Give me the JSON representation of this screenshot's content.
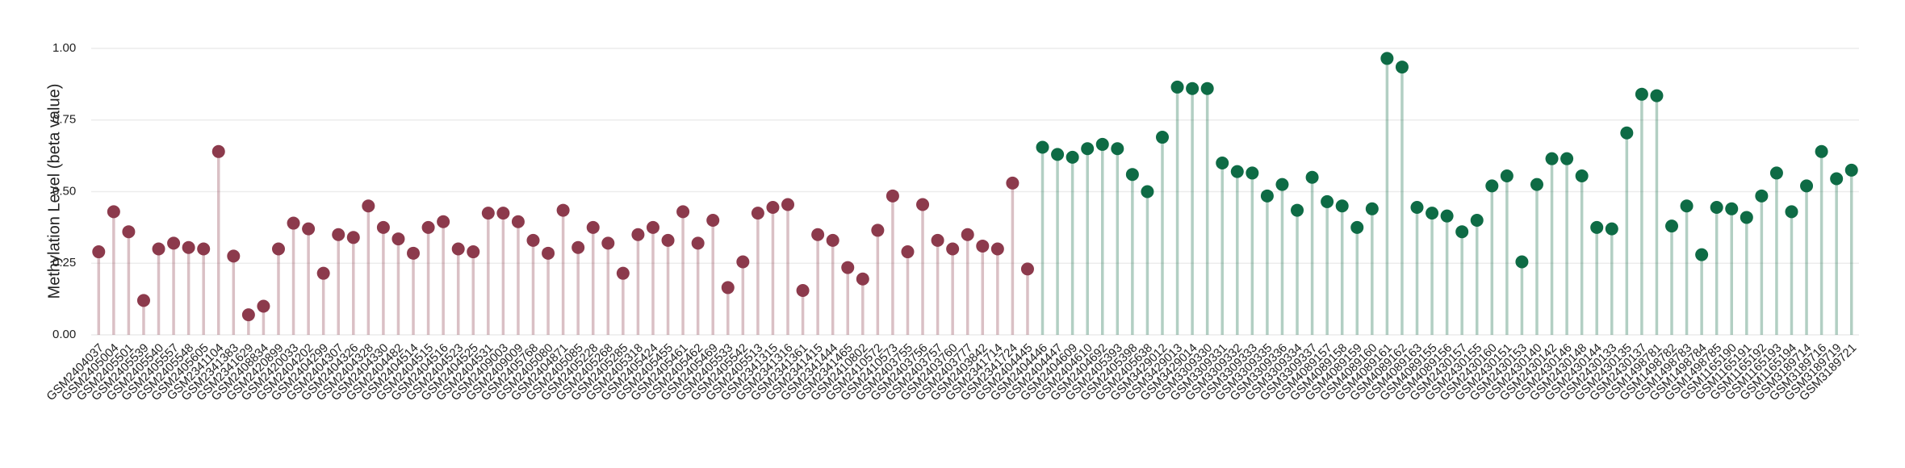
{
  "chart_data": {
    "type": "lollipop",
    "y_label": "Methylation Level (beta value)",
    "categories": [
      "GSM2404037",
      "GSM2405004",
      "GSM2405501",
      "GSM2405539",
      "GSM2405540",
      "GSM2405557",
      "GSM2405548",
      "GSM2405605",
      "GSM2341104",
      "GSM2341383",
      "GSM2341629",
      "GSM2408834",
      "GSM2420899",
      "GSM2420033",
      "GSM2404202",
      "GSM2404299",
      "GSM2404307",
      "GSM2404326",
      "GSM2404328",
      "GSM2404330",
      "GSM2404482",
      "GSM2404514",
      "GSM2404515",
      "GSM2404516",
      "GSM2404523",
      "GSM2404525",
      "GSM2404531",
      "GSM2409003",
      "GSM2409009",
      "GSM2405768",
      "GSM2405080",
      "GSM2404871",
      "GSM2405085",
      "GSM2405228",
      "GSM2405268",
      "GSM2405285",
      "GSM2405318",
      "GSM2405424",
      "GSM2405455",
      "GSM2405461",
      "GSM2405462",
      "GSM2405469",
      "GSM2405533",
      "GSM2405542",
      "GSM2405513",
      "GSM2341315",
      "GSM2341316",
      "GSM2341361",
      "GSM2341415",
      "GSM2341444",
      "GSM2341465",
      "GSM2410802",
      "GSM2410572",
      "GSM2410573",
      "GSM2403755",
      "GSM2403756",
      "GSM2403757",
      "GSM2403760",
      "GSM2403777",
      "GSM2403842",
      "GSM2341714",
      "GSM2341724",
      "GSM2404445",
      "GSM2404446",
      "GSM2404447",
      "GSM2404609",
      "GSM2404610",
      "GSM2404692",
      "GSM2405393",
      "GSM2405398",
      "GSM2405638",
      "GSM3429012",
      "GSM3429013",
      "GSM3429014",
      "GSM3309330",
      "GSM3309331",
      "GSM3309332",
      "GSM3309333",
      "GSM3309335",
      "GSM3309336",
      "GSM3309334",
      "GSM3309337",
      "GSM4089157",
      "GSM4089158",
      "GSM4089159",
      "GSM4089160",
      "GSM4089161",
      "GSM4089162",
      "GSM4089163",
      "GSM4089155",
      "GSM4089156",
      "GSM2430157",
      "GSM2430155",
      "GSM2430160",
      "GSM2430151",
      "GSM2430153",
      "GSM2430140",
      "GSM2430142",
      "GSM2430146",
      "GSM2430148",
      "GSM2430144",
      "GSM2430133",
      "GSM2430135",
      "GSM2430137",
      "GSM1498781",
      "GSM1498782",
      "GSM1498783",
      "GSM1498784",
      "GSM1498785",
      "GSM1165190",
      "GSM1165191",
      "GSM1165192",
      "GSM1165193",
      "GSM1165194",
      "GSM3189714",
      "GSM3189716",
      "GSM3189719",
      "GSM3189721"
    ],
    "values": [
      0.29,
      0.43,
      0.36,
      0.12,
      0.3,
      0.32,
      0.305,
      0.3,
      0.64,
      0.275,
      0.07,
      0.1,
      0.3,
      0.39,
      0.37,
      0.215,
      0.35,
      0.34,
      0.45,
      0.375,
      0.335,
      0.285,
      0.375,
      0.395,
      0.3,
      0.29,
      0.425,
      0.425,
      0.395,
      0.33,
      0.285,
      0.435,
      0.305,
      0.375,
      0.32,
      0.215,
      0.35,
      0.375,
      0.33,
      0.43,
      0.32,
      0.4,
      0.165,
      0.255,
      0.425,
      0.445,
      0.455,
      0.155,
      0.35,
      0.33,
      0.235,
      0.195,
      0.365,
      0.485,
      0.29,
      0.455,
      0.33,
      0.3,
      0.35,
      0.31,
      0.3,
      0.53,
      0.23,
      0.655,
      0.63,
      0.62,
      0.65,
      0.665,
      0.65,
      0.56,
      0.5,
      0.69,
      0.865,
      0.86,
      0.86,
      0.6,
      0.57,
      0.565,
      0.485,
      0.525,
      0.435,
      0.55,
      0.465,
      0.45,
      0.375,
      0.44,
      0.965,
      0.935,
      0.445,
      0.425,
      0.415,
      0.36,
      0.4,
      0.52,
      0.555,
      0.255,
      0.525,
      0.615,
      0.615,
      0.555,
      0.375,
      0.37,
      0.705,
      0.84,
      0.835,
      0.38,
      0.45,
      0.28,
      0.445,
      0.44,
      0.41,
      0.485,
      0.565,
      0.43,
      0.52,
      0.64,
      0.545,
      0.575
    ],
    "colors": [
      "#8c3a4c",
      "#8c3a4c",
      "#8c3a4c",
      "#8c3a4c",
      "#8c3a4c",
      "#8c3a4c",
      "#8c3a4c",
      "#8c3a4c",
      "#8c3a4c",
      "#8c3a4c",
      "#8c3a4c",
      "#8c3a4c",
      "#8c3a4c",
      "#8c3a4c",
      "#8c3a4c",
      "#8c3a4c",
      "#8c3a4c",
      "#8c3a4c",
      "#8c3a4c",
      "#8c3a4c",
      "#8c3a4c",
      "#8c3a4c",
      "#8c3a4c",
      "#8c3a4c",
      "#8c3a4c",
      "#8c3a4c",
      "#8c3a4c",
      "#8c3a4c",
      "#8c3a4c",
      "#8c3a4c",
      "#8c3a4c",
      "#8c3a4c",
      "#8c3a4c",
      "#8c3a4c",
      "#8c3a4c",
      "#8c3a4c",
      "#8c3a4c",
      "#8c3a4c",
      "#8c3a4c",
      "#8c3a4c",
      "#8c3a4c",
      "#8c3a4c",
      "#8c3a4c",
      "#8c3a4c",
      "#8c3a4c",
      "#8c3a4c",
      "#8c3a4c",
      "#8c3a4c",
      "#8c3a4c",
      "#8c3a4c",
      "#8c3a4c",
      "#8c3a4c",
      "#8c3a4c",
      "#8c3a4c",
      "#8c3a4c",
      "#8c3a4c",
      "#8c3a4c",
      "#8c3a4c",
      "#8c3a4c",
      "#8c3a4c",
      "#8c3a4c",
      "#8c3a4c",
      "#8c3a4c",
      "#0e6b45",
      "#0e6b45",
      "#0e6b45",
      "#0e6b45",
      "#0e6b45",
      "#0e6b45",
      "#0e6b45",
      "#0e6b45",
      "#0e6b45",
      "#0e6b45",
      "#0e6b45",
      "#0e6b45",
      "#0e6b45",
      "#0e6b45",
      "#0e6b45",
      "#0e6b45",
      "#0e6b45",
      "#0e6b45",
      "#0e6b45",
      "#0e6b45",
      "#0e6b45",
      "#0e6b45",
      "#0e6b45",
      "#0e6b45",
      "#0e6b45",
      "#0e6b45",
      "#0e6b45",
      "#0e6b45",
      "#0e6b45",
      "#0e6b45",
      "#0e6b45",
      "#0e6b45",
      "#0e6b45",
      "#0e6b45",
      "#0e6b45",
      "#0e6b45",
      "#0e6b45",
      "#0e6b45",
      "#0e6b45",
      "#0e6b45",
      "#0e6b45",
      "#0e6b45",
      "#0e6b45",
      "#0e6b45",
      "#0e6b45",
      "#0e6b45",
      "#0e6b45",
      "#0e6b45",
      "#0e6b45",
      "#0e6b45",
      "#0e6b45",
      "#0e6b45",
      "#0e6b45",
      "#0e6b45",
      "#0e6b45",
      "#0e6b45"
    ],
    "ylim": [
      0,
      1
    ],
    "yticks": [
      {
        "value": 0,
        "label": "0.00"
      },
      {
        "value": 0.25,
        "label": "0.25"
      },
      {
        "value": 0.5,
        "label": "0.50"
      },
      {
        "value": 0.75,
        "label": "0.75"
      },
      {
        "value": 1,
        "label": "1.00"
      }
    ],
    "grid": true
  }
}
